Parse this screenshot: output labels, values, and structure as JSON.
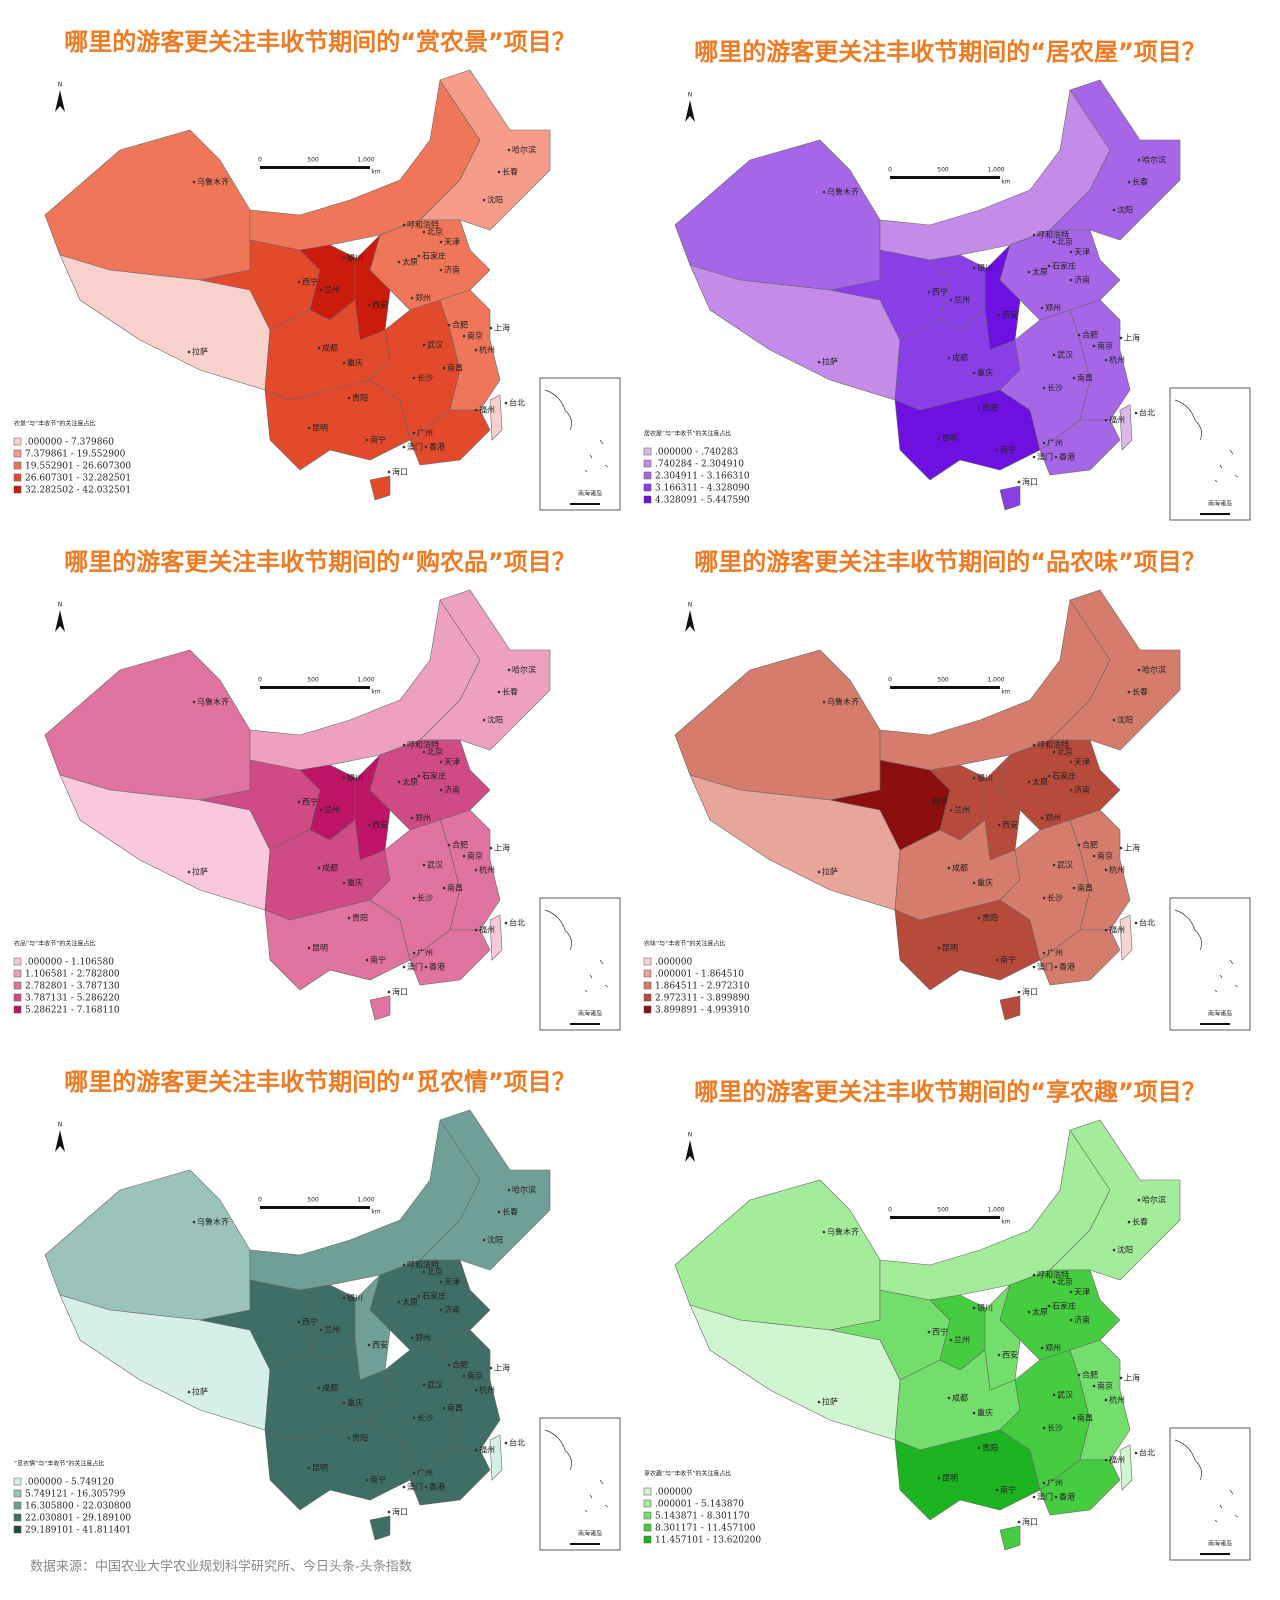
{
  "panels": [
    {
      "title": "哪里的游客更关注丰收节期间的“赏农景”项目？",
      "legend_title": "农景”与“丰收节”的关注度占比",
      "legend": [
        {
          "label": ".000000 - 7.379860",
          "color": "#f8d0cc"
        },
        {
          "label": "7.379861 - 19.552900",
          "color": "#f59c8a"
        },
        {
          "label": "19.552901 - 26.607300",
          "color": "#f07659"
        },
        {
          "label": "26.607301 - 32.282501",
          "color": "#e34a2c"
        },
        {
          "label": "32.282502 - 42.032501",
          "color": "#cc1a0c"
        }
      ]
    },
    {
      "title": "哪里的游客更关注丰收节期间的“居农屋”项目？",
      "legend_title": "居农屋”与“丰收节”的关注度占比",
      "legend": [
        {
          "label": ".000000 - .740283",
          "color": "#dcb8e8"
        },
        {
          "label": ".740284 - 2.304910",
          "color": "#c48ce8"
        },
        {
          "label": "2.304911 - 3.166310",
          "color": "#a766e8"
        },
        {
          "label": "3.166311 - 4.328090",
          "color": "#8a3ee8"
        },
        {
          "label": "4.328091 - 5.447590",
          "color": "#6d10e0"
        }
      ]
    },
    {
      "title": "哪里的游客更关注丰收节期间的“购农品”项目？",
      "legend_title": "农品”与“丰收节”的关注度占比",
      "legend": [
        {
          "label": ".000000 - 1.106580",
          "color": "#f9c8de"
        },
        {
          "label": "1.106581 - 2.782800",
          "color": "#eea0c0"
        },
        {
          "label": "2.782801 - 3.787130",
          "color": "#e0739f"
        },
        {
          "label": "3.787131 - 5.286220",
          "color": "#d04a85"
        },
        {
          "label": "5.286221 - 7.168110",
          "color": "#bd1465"
        }
      ]
    },
    {
      "title": "哪里的游客更关注丰收节期间的“品农味”项目？",
      "legend_title": "农味”与“丰收节”的关注度占比",
      "legend": [
        {
          "label": ".000000",
          "color": "#f6d6d2"
        },
        {
          "label": ".000001 - 1.864510",
          "color": "#e8a59a"
        },
        {
          "label": "1.864511 - 2.972310",
          "color": "#d67c6c"
        },
        {
          "label": "2.972311 - 3.899890",
          "color": "#b84a3c"
        },
        {
          "label": "3.899891 - 4.993910",
          "color": "#8c0e0e"
        }
      ]
    },
    {
      "title": "哪里的游客更关注丰收节期间的“觅农情”项目？",
      "legend_title": "“觅农情”与“丰收节”的关注度占比",
      "legend": [
        {
          "label": ".000000 - 5.749120",
          "color": "#d6efe9"
        },
        {
          "label": "5.749121 - 16.305799",
          "color": "#9bc3bc"
        },
        {
          "label": "16.305800 - 22.030800",
          "color": "#6f9f97"
        },
        {
          "label": "22.030801 - 29.189100",
          "color": "#3f6e66"
        },
        {
          "label": "29.189101 - 41.811401",
          "color": "#1e4a42"
        }
      ]
    },
    {
      "title": "哪里的游客更关注丰收节期间的“享农趣”项目？",
      "legend_title": "享农趣”与“丰收节”的关注度占比",
      "legend": [
        {
          "label": ".000000",
          "color": "#d0f5d0"
        },
        {
          "label": ".000001 - 5.143870",
          "color": "#a2ec9a"
        },
        {
          "label": "5.143871 - 8.301170",
          "color": "#74de6c"
        },
        {
          "label": "8.301171 - 11.457100",
          "color": "#46cc40"
        },
        {
          "label": "11.457101 - 13.620200",
          "color": "#1cb420"
        }
      ]
    }
  ],
  "north": "N",
  "scale_labels": [
    "0",
    "500",
    "1,000",
    "km"
  ],
  "inset_label": "南海诸岛",
  "city_labels": [
    "乌鲁木齐",
    "哈尔滨",
    "长春",
    "沈阳",
    "呼和浩特",
    "北京",
    "天津",
    "石家庄",
    "太原",
    "济南",
    "银川",
    "西宁",
    "兰州",
    "西安",
    "郑州",
    "合肥",
    "南京",
    "上海",
    "杭州",
    "武汉",
    "成都",
    "重庆",
    "长沙",
    "南昌",
    "拉萨",
    "贵阳",
    "福州",
    "台北",
    "昆明",
    "南宁",
    "广州",
    "澳门",
    "香港",
    "海口"
  ],
  "source": "数据来源：中国农业大学农业规划科学研究所、今日头条-头条指数"
}
